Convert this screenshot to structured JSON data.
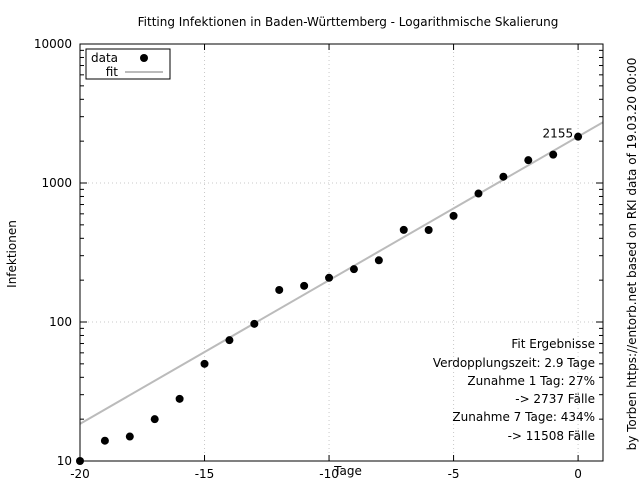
{
  "chart_data": {
    "type": "scatter",
    "title": "Fitting Infektionen in Baden-Württemberg - Logarithmische Skalierung",
    "xlabel": "Tage",
    "ylabel": "Infektionen",
    "side_label": "by Torben https://entorb.net based on RKI data of 19.03.20 00:00",
    "xlim": [
      -20,
      1
    ],
    "ylim": [
      10,
      10000
    ],
    "y_scale": "log",
    "grid": true,
    "legend_position": "top-left",
    "x_ticks": [
      -20,
      -15,
      -10,
      -5,
      0
    ],
    "x_tick_labels": [
      "-20",
      "-15",
      "-10",
      "-5",
      "0"
    ],
    "y_ticks": [
      10,
      100,
      1000,
      10000
    ],
    "y_tick_labels": [
      "10",
      "100",
      "1000",
      "10000"
    ],
    "series": [
      {
        "name": "data",
        "kind": "points",
        "color": "#000000",
        "x": [
          -20,
          -19,
          -18,
          -17,
          -16,
          -15,
          -14,
          -13,
          -12,
          -11,
          -10,
          -9,
          -8,
          -7,
          -6,
          -5,
          -4,
          -3,
          -2,
          -1,
          0
        ],
        "y": [
          10,
          14,
          15,
          20,
          28,
          50,
          74,
          97,
          170,
          182,
          208,
          240,
          278,
          460,
          459,
          580,
          840,
          1110,
          1460,
          1600,
          2155
        ]
      },
      {
        "name": "fit",
        "kind": "line",
        "color": "#bbbbbb",
        "x": [
          -20,
          1
        ],
        "y": [
          18.5,
          2737
        ]
      }
    ],
    "point_annotation": {
      "x": 0,
      "y": 2155,
      "text": "2155"
    },
    "fit_box": {
      "lines": [
        "Fit Ergebnisse",
        "Verdopplungszeit: 2.9 Tage",
        "Zunahme 1 Tag: 27%",
        "-> 2737 Fälle",
        "Zunahme 7 Tage: 434%",
        "-> 11508 Fälle"
      ]
    }
  }
}
